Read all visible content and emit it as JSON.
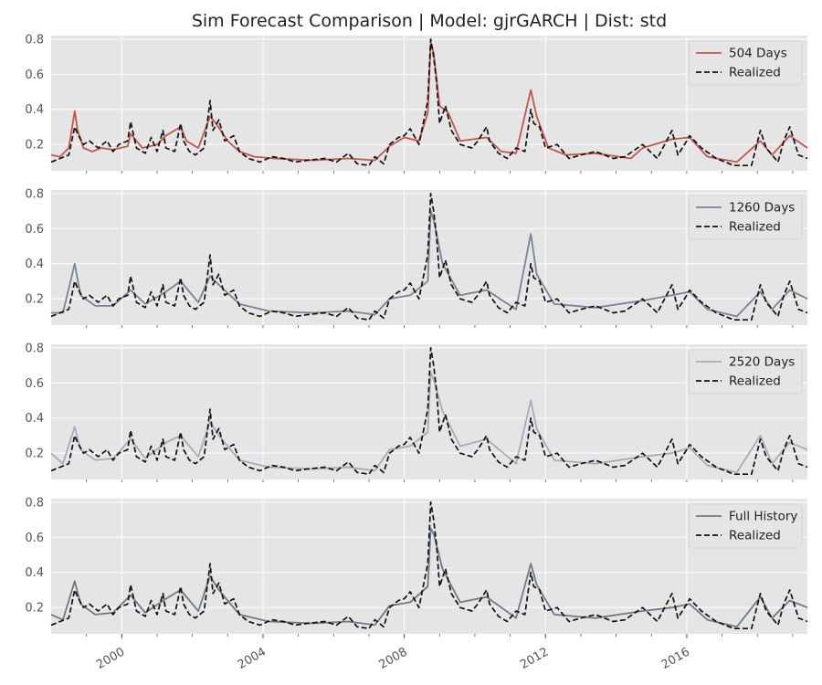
{
  "figure": {
    "title": "Sim Forecast Comparison | Model: gjrGARCH | Dist: std"
  },
  "chart_data": {
    "type": "line",
    "x_axis": {
      "kind": "date",
      "range": [
        "1998-01",
        "2019-06"
      ],
      "tick_labels": [
        "2000",
        "2004",
        "2008",
        "2012",
        "2016"
      ]
    },
    "y_axis": {
      "range": [
        0.05,
        0.82
      ],
      "tick_labels": [
        "0.2",
        "0.4",
        "0.6",
        "0.8"
      ],
      "ticks": [
        0.2,
        0.4,
        0.6,
        0.8
      ]
    },
    "grid": true,
    "legend_placement": "top-right",
    "realized": {
      "name": "Realized",
      "color": "#111111",
      "style": "dashed",
      "points": [
        [
          "1998-01",
          0.1
        ],
        [
          "1998-04",
          0.12
        ],
        [
          "1998-07",
          0.14
        ],
        [
          "1998-09",
          0.3
        ],
        [
          "1998-10",
          0.26
        ],
        [
          "1998-12",
          0.2
        ],
        [
          "1999-02",
          0.22
        ],
        [
          "1999-05",
          0.18
        ],
        [
          "1999-08",
          0.22
        ],
        [
          "1999-10",
          0.16
        ],
        [
          "1999-12",
          0.2
        ],
        [
          "2000-03",
          0.22
        ],
        [
          "2000-04",
          0.33
        ],
        [
          "2000-06",
          0.18
        ],
        [
          "2000-09",
          0.15
        ],
        [
          "2000-11",
          0.24
        ],
        [
          "2001-01",
          0.16
        ],
        [
          "2001-03",
          0.28
        ],
        [
          "2001-04",
          0.18
        ],
        [
          "2001-07",
          0.16
        ],
        [
          "2001-09",
          0.32
        ],
        [
          "2001-10",
          0.22
        ],
        [
          "2001-12",
          0.16
        ],
        [
          "2002-02",
          0.14
        ],
        [
          "2002-05",
          0.18
        ],
        [
          "2002-07",
          0.45
        ],
        [
          "2002-08",
          0.28
        ],
        [
          "2002-10",
          0.34
        ],
        [
          "2002-12",
          0.22
        ],
        [
          "2003-03",
          0.25
        ],
        [
          "2003-05",
          0.16
        ],
        [
          "2003-08",
          0.12
        ],
        [
          "2003-12",
          0.1
        ],
        [
          "2004-04",
          0.13
        ],
        [
          "2004-08",
          0.12
        ],
        [
          "2004-12",
          0.1
        ],
        [
          "2005-04",
          0.11
        ],
        [
          "2005-10",
          0.12
        ],
        [
          "2006-02",
          0.1
        ],
        [
          "2006-06",
          0.15
        ],
        [
          "2006-09",
          0.09
        ],
        [
          "2007-01",
          0.08
        ],
        [
          "2007-03",
          0.13
        ],
        [
          "2007-06",
          0.09
        ],
        [
          "2007-08",
          0.2
        ],
        [
          "2007-11",
          0.24
        ],
        [
          "2008-01",
          0.25
        ],
        [
          "2008-03",
          0.29
        ],
        [
          "2008-06",
          0.2
        ],
        [
          "2008-09",
          0.45
        ],
        [
          "2008-10",
          0.8
        ],
        [
          "2008-11",
          0.7
        ],
        [
          "2008-12",
          0.55
        ],
        [
          "2009-01",
          0.32
        ],
        [
          "2009-03",
          0.42
        ],
        [
          "2009-05",
          0.28
        ],
        [
          "2009-08",
          0.2
        ],
        [
          "2009-12",
          0.18
        ],
        [
          "2010-02",
          0.22
        ],
        [
          "2010-05",
          0.3
        ],
        [
          "2010-06",
          0.22
        ],
        [
          "2010-09",
          0.15
        ],
        [
          "2010-12",
          0.12
        ],
        [
          "2011-03",
          0.18
        ],
        [
          "2011-06",
          0.16
        ],
        [
          "2011-08",
          0.4
        ],
        [
          "2011-09",
          0.32
        ],
        [
          "2011-11",
          0.3
        ],
        [
          "2012-01",
          0.18
        ],
        [
          "2012-05",
          0.2
        ],
        [
          "2012-09",
          0.12
        ],
        [
          "2013-01",
          0.14
        ],
        [
          "2013-06",
          0.16
        ],
        [
          "2013-12",
          0.12
        ],
        [
          "2014-04",
          0.13
        ],
        [
          "2014-10",
          0.2
        ],
        [
          "2015-03",
          0.12
        ],
        [
          "2015-08",
          0.28
        ],
        [
          "2015-10",
          0.14
        ],
        [
          "2016-01",
          0.22
        ],
        [
          "2016-02",
          0.25
        ],
        [
          "2016-06",
          0.18
        ],
        [
          "2016-11",
          0.12
        ],
        [
          "2017-05",
          0.08
        ],
        [
          "2017-11",
          0.08
        ],
        [
          "2018-02",
          0.28
        ],
        [
          "2018-04",
          0.18
        ],
        [
          "2018-08",
          0.1
        ],
        [
          "2018-10",
          0.22
        ],
        [
          "2018-12",
          0.3
        ],
        [
          "2019-03",
          0.14
        ],
        [
          "2019-06",
          0.12
        ]
      ]
    },
    "series": [
      {
        "name": "504 Days",
        "color": "#c0574a",
        "points": [
          [
            "1998-01",
            0.14
          ],
          [
            "1998-04",
            0.13
          ],
          [
            "1998-07",
            0.18
          ],
          [
            "1998-09",
            0.39
          ],
          [
            "1998-10",
            0.28
          ],
          [
            "1998-12",
            0.18
          ],
          [
            "1999-03",
            0.16
          ],
          [
            "1999-06",
            0.18
          ],
          [
            "1999-10",
            0.17
          ],
          [
            "2000-03",
            0.19
          ],
          [
            "2000-04",
            0.26
          ],
          [
            "2000-08",
            0.18
          ],
          [
            "2001-01",
            0.2
          ],
          [
            "2001-04",
            0.25
          ],
          [
            "2001-09",
            0.3
          ],
          [
            "2001-11",
            0.22
          ],
          [
            "2002-03",
            0.18
          ],
          [
            "2002-07",
            0.36
          ],
          [
            "2002-09",
            0.32
          ],
          [
            "2003-01",
            0.22
          ],
          [
            "2003-05",
            0.16
          ],
          [
            "2003-10",
            0.13
          ],
          [
            "2004-05",
            0.12
          ],
          [
            "2005-06",
            0.11
          ],
          [
            "2006-06",
            0.12
          ],
          [
            "2007-03",
            0.11
          ],
          [
            "2007-08",
            0.19
          ],
          [
            "2008-01",
            0.24
          ],
          [
            "2008-06",
            0.22
          ],
          [
            "2008-09",
            0.38
          ],
          [
            "2008-10",
            0.78
          ],
          [
            "2008-11",
            0.72
          ],
          [
            "2009-01",
            0.42
          ],
          [
            "2009-04",
            0.38
          ],
          [
            "2009-08",
            0.22
          ],
          [
            "2010-05",
            0.24
          ],
          [
            "2010-10",
            0.16
          ],
          [
            "2011-03",
            0.15
          ],
          [
            "2011-08",
            0.51
          ],
          [
            "2011-10",
            0.36
          ],
          [
            "2012-02",
            0.18
          ],
          [
            "2012-08",
            0.14
          ],
          [
            "2013-06",
            0.15
          ],
          [
            "2014-06",
            0.12
          ],
          [
            "2014-10",
            0.18
          ],
          [
            "2015-08",
            0.23
          ],
          [
            "2016-02",
            0.24
          ],
          [
            "2016-08",
            0.13
          ],
          [
            "2017-06",
            0.1
          ],
          [
            "2018-02",
            0.22
          ],
          [
            "2018-06",
            0.14
          ],
          [
            "2018-12",
            0.25
          ],
          [
            "2019-06",
            0.18
          ]
        ]
      },
      {
        "name": "1260 Days",
        "color": "#77859a",
        "points": [
          [
            "1998-01",
            0.12
          ],
          [
            "1998-05",
            0.12
          ],
          [
            "1998-09",
            0.4
          ],
          [
            "1998-11",
            0.22
          ],
          [
            "1999-04",
            0.16
          ],
          [
            "1999-10",
            0.16
          ],
          [
            "2000-04",
            0.25
          ],
          [
            "2000-09",
            0.17
          ],
          [
            "2001-04",
            0.24
          ],
          [
            "2001-09",
            0.3
          ],
          [
            "2002-03",
            0.18
          ],
          [
            "2002-07",
            0.33
          ],
          [
            "2002-10",
            0.28
          ],
          [
            "2003-05",
            0.17
          ],
          [
            "2004-03",
            0.13
          ],
          [
            "2005-06",
            0.12
          ],
          [
            "2006-06",
            0.13
          ],
          [
            "2007-03",
            0.11
          ],
          [
            "2007-08",
            0.2
          ],
          [
            "2008-03",
            0.22
          ],
          [
            "2008-09",
            0.3
          ],
          [
            "2008-10",
            0.7
          ],
          [
            "2008-11",
            0.65
          ],
          [
            "2009-02",
            0.4
          ],
          [
            "2009-08",
            0.22
          ],
          [
            "2010-05",
            0.25
          ],
          [
            "2011-03",
            0.14
          ],
          [
            "2011-08",
            0.57
          ],
          [
            "2011-10",
            0.34
          ],
          [
            "2012-04",
            0.17
          ],
          [
            "2013-06",
            0.15
          ],
          [
            "2014-10",
            0.19
          ],
          [
            "2015-08",
            0.22
          ],
          [
            "2016-02",
            0.24
          ],
          [
            "2016-08",
            0.14
          ],
          [
            "2017-06",
            0.1
          ],
          [
            "2018-02",
            0.24
          ],
          [
            "2018-06",
            0.14
          ],
          [
            "2018-12",
            0.25
          ],
          [
            "2019-06",
            0.2
          ]
        ]
      },
      {
        "name": "2520 Days",
        "color": "#a8abc0",
        "points": [
          [
            "1998-01",
            0.2
          ],
          [
            "1998-05",
            0.14
          ],
          [
            "1998-09",
            0.35
          ],
          [
            "1998-11",
            0.22
          ],
          [
            "1999-04",
            0.16
          ],
          [
            "1999-10",
            0.17
          ],
          [
            "2000-04",
            0.28
          ],
          [
            "2000-09",
            0.17
          ],
          [
            "2001-04",
            0.26
          ],
          [
            "2001-09",
            0.3
          ],
          [
            "2002-03",
            0.18
          ],
          [
            "2002-07",
            0.38
          ],
          [
            "2002-10",
            0.3
          ],
          [
            "2003-05",
            0.16
          ],
          [
            "2004-03",
            0.12
          ],
          [
            "2005-06",
            0.11
          ],
          [
            "2006-06",
            0.12
          ],
          [
            "2007-03",
            0.1
          ],
          [
            "2007-08",
            0.22
          ],
          [
            "2008-03",
            0.24
          ],
          [
            "2008-09",
            0.32
          ],
          [
            "2008-10",
            0.66
          ],
          [
            "2008-11",
            0.62
          ],
          [
            "2009-02",
            0.44
          ],
          [
            "2009-08",
            0.24
          ],
          [
            "2010-05",
            0.28
          ],
          [
            "2011-03",
            0.14
          ],
          [
            "2011-08",
            0.5
          ],
          [
            "2011-10",
            0.34
          ],
          [
            "2012-04",
            0.16
          ],
          [
            "2013-06",
            0.14
          ],
          [
            "2014-10",
            0.18
          ],
          [
            "2015-08",
            0.2
          ],
          [
            "2016-02",
            0.23
          ],
          [
            "2016-08",
            0.13
          ],
          [
            "2017-06",
            0.09
          ],
          [
            "2018-02",
            0.3
          ],
          [
            "2018-06",
            0.14
          ],
          [
            "2018-12",
            0.26
          ],
          [
            "2019-06",
            0.22
          ]
        ]
      },
      {
        "name": "Full History",
        "color": "#6b7a8c",
        "points": [
          [
            "1998-01",
            0.16
          ],
          [
            "1998-05",
            0.13
          ],
          [
            "1998-09",
            0.35
          ],
          [
            "1998-11",
            0.22
          ],
          [
            "1999-04",
            0.16
          ],
          [
            "1999-10",
            0.17
          ],
          [
            "2000-04",
            0.27
          ],
          [
            "2000-09",
            0.17
          ],
          [
            "2001-04",
            0.25
          ],
          [
            "2001-09",
            0.3
          ],
          [
            "2002-03",
            0.18
          ],
          [
            "2002-07",
            0.38
          ],
          [
            "2002-10",
            0.3
          ],
          [
            "2003-05",
            0.16
          ],
          [
            "2004-03",
            0.12
          ],
          [
            "2005-06",
            0.11
          ],
          [
            "2006-06",
            0.12
          ],
          [
            "2007-03",
            0.1
          ],
          [
            "2007-08",
            0.21
          ],
          [
            "2008-03",
            0.23
          ],
          [
            "2008-09",
            0.32
          ],
          [
            "2008-10",
            0.65
          ],
          [
            "2008-11",
            0.62
          ],
          [
            "2009-02",
            0.42
          ],
          [
            "2009-08",
            0.23
          ],
          [
            "2010-05",
            0.26
          ],
          [
            "2011-03",
            0.14
          ],
          [
            "2011-08",
            0.45
          ],
          [
            "2011-10",
            0.33
          ],
          [
            "2012-04",
            0.16
          ],
          [
            "2013-06",
            0.14
          ],
          [
            "2014-10",
            0.18
          ],
          [
            "2015-08",
            0.2
          ],
          [
            "2016-02",
            0.22
          ],
          [
            "2016-08",
            0.13
          ],
          [
            "2017-06",
            0.09
          ],
          [
            "2018-02",
            0.26
          ],
          [
            "2018-06",
            0.14
          ],
          [
            "2018-12",
            0.24
          ],
          [
            "2019-06",
            0.2
          ]
        ]
      }
    ]
  }
}
